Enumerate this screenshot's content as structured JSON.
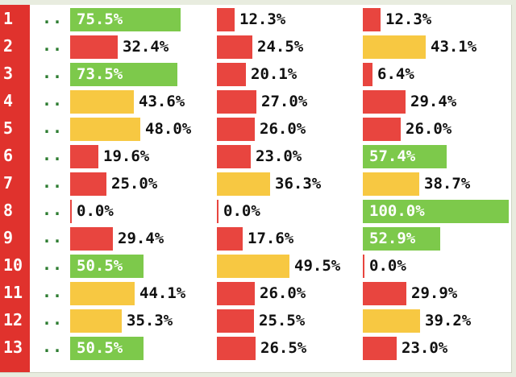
{
  "colors": {
    "red": "#e8453f",
    "yellow": "#f7c842",
    "green": "#7dc94b",
    "rownum_bg": "#e0322d"
  },
  "rows": [
    {
      "num": "1",
      "dots": "..",
      "cells": [
        {
          "text": "75.5%",
          "value": 75.5,
          "color": "green"
        },
        {
          "text": "12.3%",
          "value": 12.3,
          "color": "red"
        },
        {
          "text": "12.3%",
          "value": 12.3,
          "color": "red"
        }
      ]
    },
    {
      "num": "2",
      "dots": "..",
      "cells": [
        {
          "text": "32.4%",
          "value": 32.4,
          "color": "red"
        },
        {
          "text": "24.5%",
          "value": 24.5,
          "color": "red"
        },
        {
          "text": "43.1%",
          "value": 43.1,
          "color": "yellow"
        }
      ]
    },
    {
      "num": "3",
      "dots": "..",
      "cells": [
        {
          "text": "73.5%",
          "value": 73.5,
          "color": "green"
        },
        {
          "text": "20.1%",
          "value": 20.1,
          "color": "red"
        },
        {
          "text": "6.4%",
          "value": 6.4,
          "color": "red"
        }
      ]
    },
    {
      "num": "4",
      "dots": "..",
      "cells": [
        {
          "text": "43.6%",
          "value": 43.6,
          "color": "yellow"
        },
        {
          "text": "27.0%",
          "value": 27.0,
          "color": "red"
        },
        {
          "text": "29.4%",
          "value": 29.4,
          "color": "red"
        }
      ]
    },
    {
      "num": "5",
      "dots": "..",
      "cells": [
        {
          "text": "48.0%",
          "value": 48.0,
          "color": "yellow"
        },
        {
          "text": "26.0%",
          "value": 26.0,
          "color": "red"
        },
        {
          "text": "26.0%",
          "value": 26.0,
          "color": "red"
        }
      ]
    },
    {
      "num": "6",
      "dots": "..",
      "cells": [
        {
          "text": "19.6%",
          "value": 19.6,
          "color": "red"
        },
        {
          "text": "23.0%",
          "value": 23.0,
          "color": "red"
        },
        {
          "text": "57.4%",
          "value": 57.4,
          "color": "green"
        }
      ]
    },
    {
      "num": "7",
      "dots": "..",
      "cells": [
        {
          "text": "25.0%",
          "value": 25.0,
          "color": "red"
        },
        {
          "text": "36.3%",
          "value": 36.3,
          "color": "yellow"
        },
        {
          "text": "38.7%",
          "value": 38.7,
          "color": "yellow"
        }
      ]
    },
    {
      "num": "8",
      "dots": "..",
      "cells": [
        {
          "text": "0.0%",
          "value": 0.0,
          "color": "red"
        },
        {
          "text": "0.0%",
          "value": 0.0,
          "color": "red"
        },
        {
          "text": "100.0%",
          "value": 100.0,
          "color": "green"
        }
      ]
    },
    {
      "num": "9",
      "dots": "..",
      "cells": [
        {
          "text": "29.4%",
          "value": 29.4,
          "color": "red"
        },
        {
          "text": "17.6%",
          "value": 17.6,
          "color": "red"
        },
        {
          "text": "52.9%",
          "value": 52.9,
          "color": "green"
        }
      ]
    },
    {
      "num": "10",
      "dots": "..",
      "cells": [
        {
          "text": "50.5%",
          "value": 50.5,
          "color": "green"
        },
        {
          "text": "49.5%",
          "value": 49.5,
          "color": "yellow"
        },
        {
          "text": "0.0%",
          "value": 0.0,
          "color": "red"
        }
      ]
    },
    {
      "num": "11",
      "dots": "..",
      "cells": [
        {
          "text": "44.1%",
          "value": 44.1,
          "color": "yellow"
        },
        {
          "text": "26.0%",
          "value": 26.0,
          "color": "red"
        },
        {
          "text": "29.9%",
          "value": 29.9,
          "color": "red"
        }
      ]
    },
    {
      "num": "12",
      "dots": "..",
      "cells": [
        {
          "text": "35.3%",
          "value": 35.3,
          "color": "yellow"
        },
        {
          "text": "25.5%",
          "value": 25.5,
          "color": "red"
        },
        {
          "text": "39.2%",
          "value": 39.2,
          "color": "yellow"
        }
      ]
    },
    {
      "num": "13",
      "dots": "..",
      "cells": [
        {
          "text": "50.5%",
          "value": 50.5,
          "color": "green"
        },
        {
          "text": "26.5%",
          "value": 26.5,
          "color": "red"
        },
        {
          "text": "23.0%",
          "value": 23.0,
          "color": "red"
        }
      ]
    }
  ]
}
